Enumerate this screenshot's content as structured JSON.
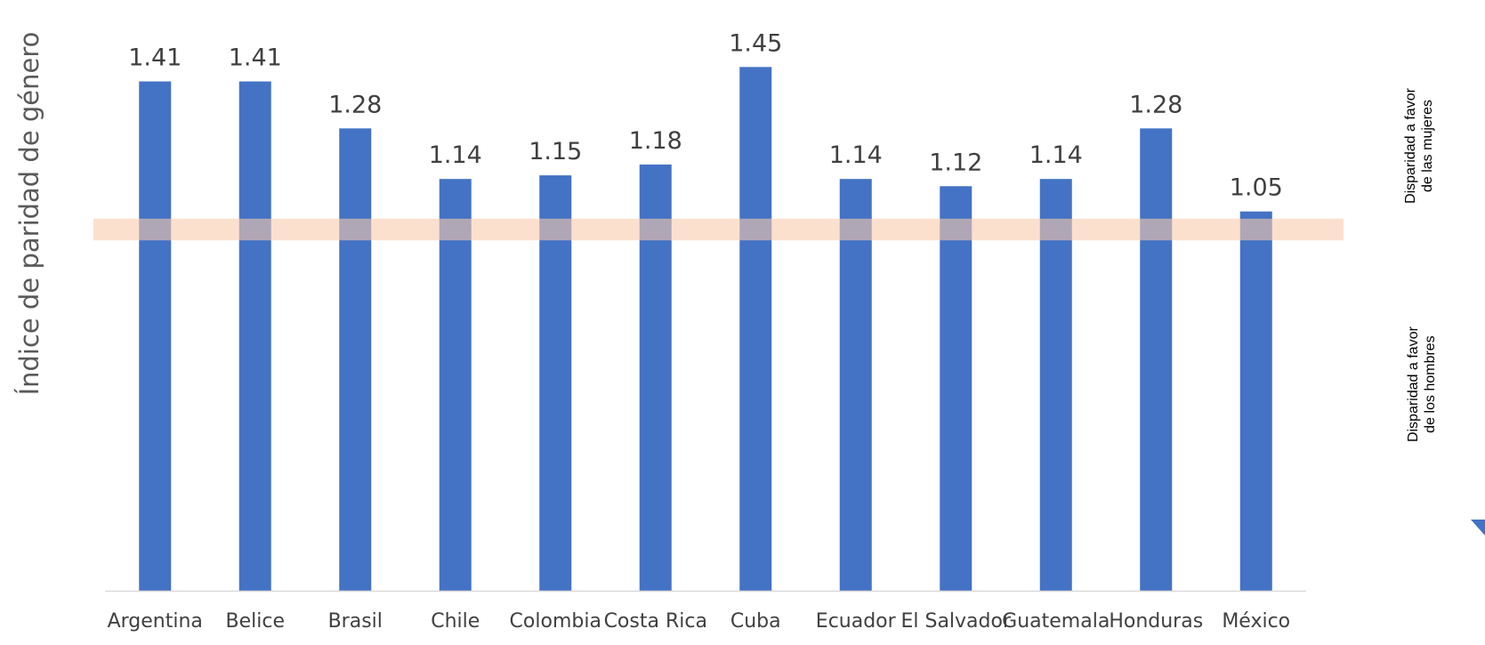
{
  "chart_data": {
    "type": "bar",
    "categories": [
      "Argentina",
      "Belice",
      "Brasil",
      "Chile",
      "Colombia",
      "Costa Rica",
      "Cuba",
      "Ecuador",
      "El Salvador",
      "Guatemala",
      "Honduras",
      "México"
    ],
    "values": [
      1.41,
      1.41,
      1.28,
      1.14,
      1.15,
      1.18,
      1.45,
      1.14,
      1.12,
      1.14,
      1.28,
      1.05
    ],
    "value_labels": [
      "1.41",
      "1.41",
      "1.28",
      "1.14",
      "1.15",
      "1.18",
      "1.45",
      "1.14",
      "1.12",
      "1.14",
      "1.28",
      "1.05"
    ],
    "title": "",
    "xlabel": "",
    "ylabel": "Índice de paridad de género",
    "ylim": [
      0,
      1.55
    ],
    "parity_band": [
      0.97,
      1.03
    ],
    "grid": false,
    "bar_color": "#4472C4",
    "band_color": "#F8CBAD",
    "annotations": {
      "upper": [
        "Disparidad a favor",
        "de las mujeres"
      ],
      "lower": [
        "Disparidad a favor",
        "de los hombres"
      ]
    }
  }
}
